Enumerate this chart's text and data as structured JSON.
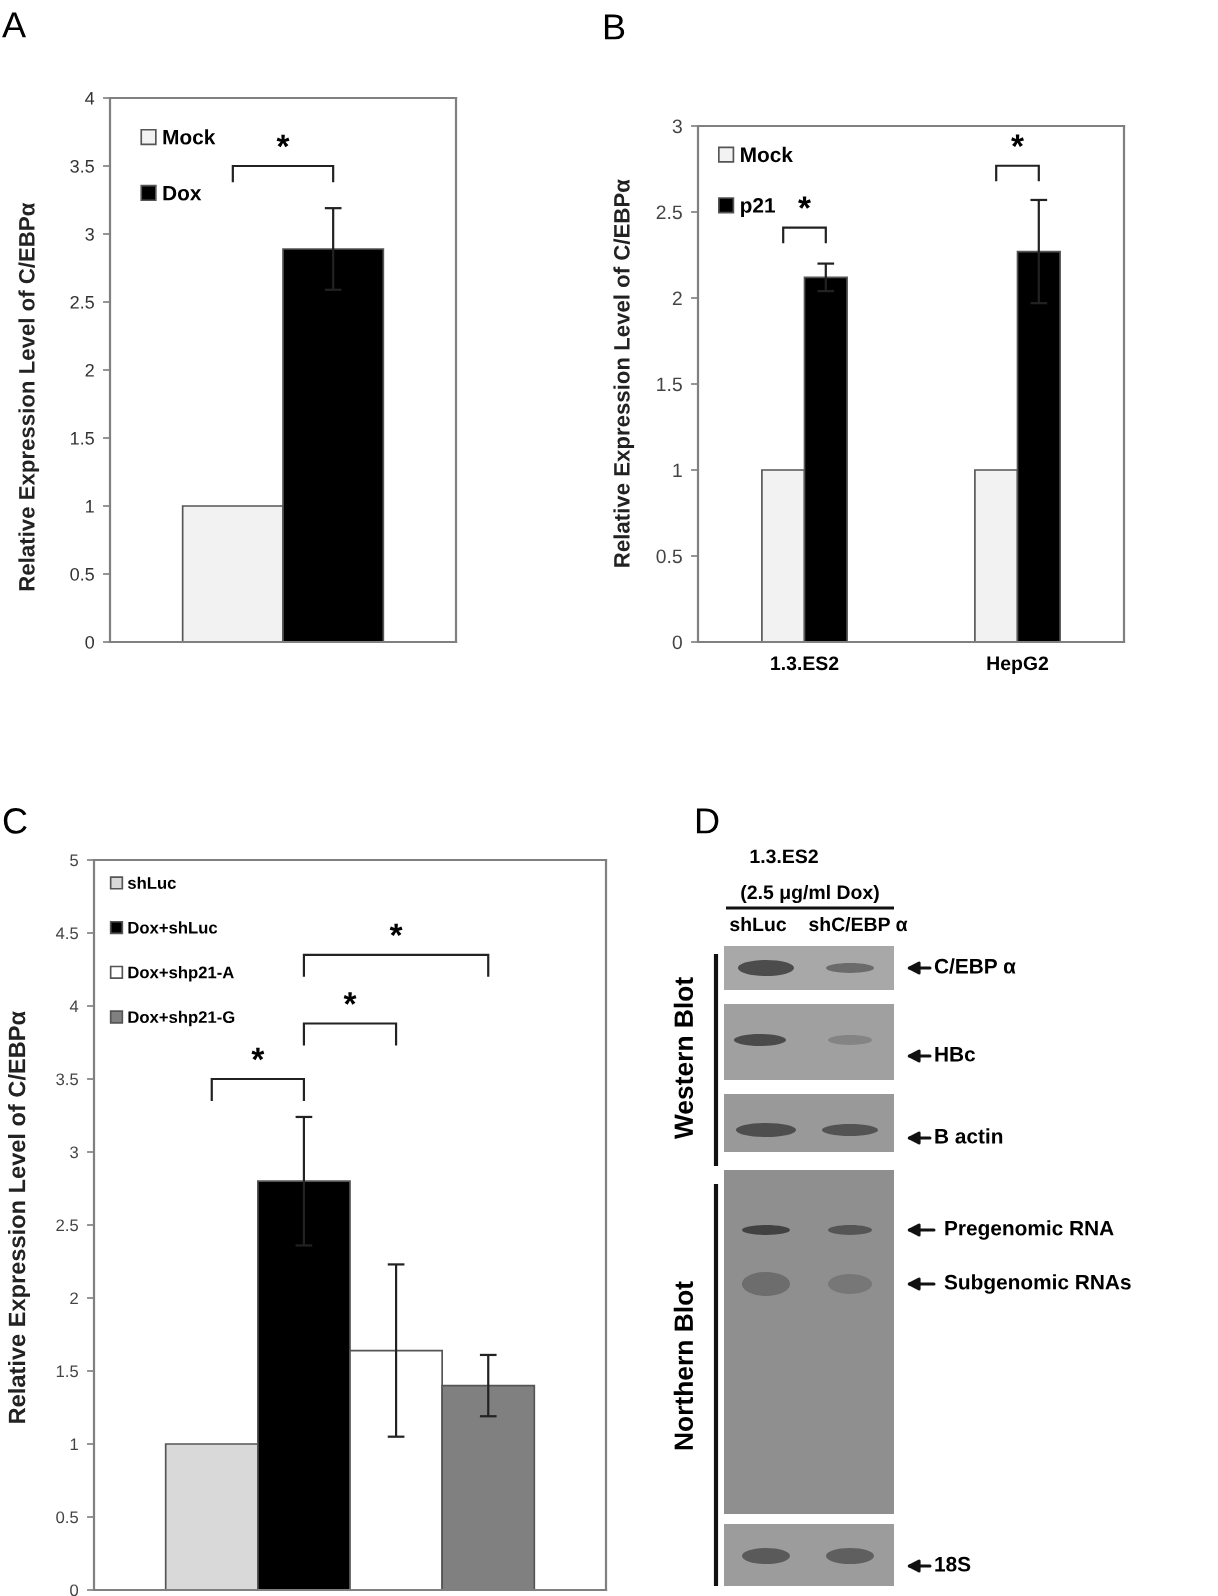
{
  "chart_data": [
    {
      "type": "bar",
      "title": "A",
      "ylabel": "Relative Expression Level of C/EBPα",
      "categories": [
        null
      ],
      "series": [
        {
          "name": "Mock",
          "color": "#f2f2f2",
          "values": [
            1
          ]
        },
        {
          "name": "Dox",
          "color": "#000000",
          "values": [
            2.89
          ],
          "errors": [
            0.3
          ]
        }
      ],
      "ylim": [
        0,
        4
      ],
      "yticks": [
        0,
        0.5,
        1,
        1.5,
        2,
        2.5,
        3,
        3.5,
        4
      ],
      "legend": "top left",
      "annotations": [
        "*"
      ]
    },
    {
      "type": "bar",
      "title": "B",
      "ylabel": "Relative Expression Level of C/EBPα",
      "categories": [
        "1.3.ES2",
        "HepG2"
      ],
      "series": [
        {
          "name": "Mock",
          "color": "#f2f2f2",
          "values": [
            1,
            1
          ]
        },
        {
          "name": "p21",
          "color": "#000000",
          "values": [
            2.12,
            2.27
          ],
          "errors": [
            0.08,
            0.3
          ]
        }
      ],
      "ylim": [
        0,
        3
      ],
      "yticks": [
        0,
        0.5,
        1,
        1.5,
        2,
        2.5,
        3
      ],
      "legend": "top left",
      "annotations": [
        "*",
        "*"
      ]
    },
    {
      "type": "bar",
      "title": "C",
      "ylabel": "Relative Expression Level of C/EBPα",
      "categories": [
        null
      ],
      "series": [
        {
          "name": "shLuc",
          "color": "#d9d9d9",
          "values": [
            1
          ]
        },
        {
          "name": "Dox+shLuc",
          "color": "#000000",
          "values": [
            2.8
          ],
          "errors": [
            0.44
          ]
        },
        {
          "name": "Dox+shp21-A",
          "color": "#ffffff",
          "values": [
            1.64
          ],
          "errors": [
            0.59
          ]
        },
        {
          "name": "Dox+shp21-G",
          "color": "#808080",
          "values": [
            1.4
          ],
          "errors": [
            0.21
          ]
        }
      ],
      "ylim": [
        0,
        5
      ],
      "yticks": [
        0,
        0.5,
        1,
        1.5,
        2,
        2.5,
        3,
        3.5,
        4,
        4.5,
        5
      ],
      "legend": "top left",
      "annotations": [
        "*",
        "*",
        "*"
      ]
    },
    {
      "type": "other",
      "title": "D",
      "annotations": [
        "1.3.ES2",
        "(2.5 μg/ml Dox)",
        "shLuc",
        "shC/EBP α",
        "C/EBP α",
        "HBc",
        "B actin",
        "Pregenomic RNA",
        "Subgenomic RNAs",
        "18S",
        "Western Blot",
        "Northern Blot"
      ]
    }
  ]
}
